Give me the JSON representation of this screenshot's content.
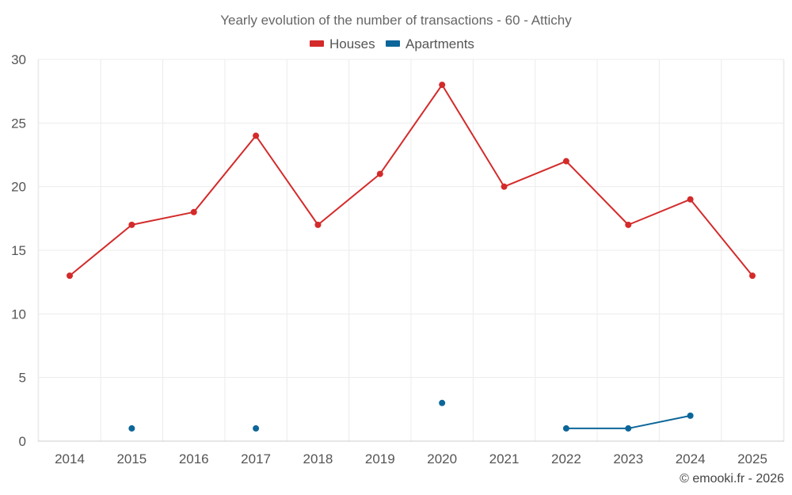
{
  "chart_data": {
    "type": "line",
    "title": "Yearly evolution of the number of transactions - 60 - Attichy",
    "categories": [
      "2014",
      "2015",
      "2016",
      "2017",
      "2018",
      "2019",
      "2020",
      "2021",
      "2022",
      "2023",
      "2024",
      "2025"
    ],
    "ylim": [
      0,
      30
    ],
    "yticks": [
      0,
      5,
      10,
      15,
      20,
      25,
      30
    ],
    "grid": true,
    "legend_position": "top-center",
    "series": [
      {
        "name": "Houses",
        "color": "#d42a2a",
        "values": [
          13,
          17,
          18,
          24,
          17,
          21,
          28,
          20,
          22,
          17,
          19,
          13
        ]
      },
      {
        "name": "Apartments",
        "color": "#0d6699",
        "values": [
          null,
          1,
          null,
          1,
          null,
          null,
          3,
          null,
          1,
          1,
          2,
          null
        ]
      }
    ]
  },
  "credit": "© emooki.fr - 2026"
}
